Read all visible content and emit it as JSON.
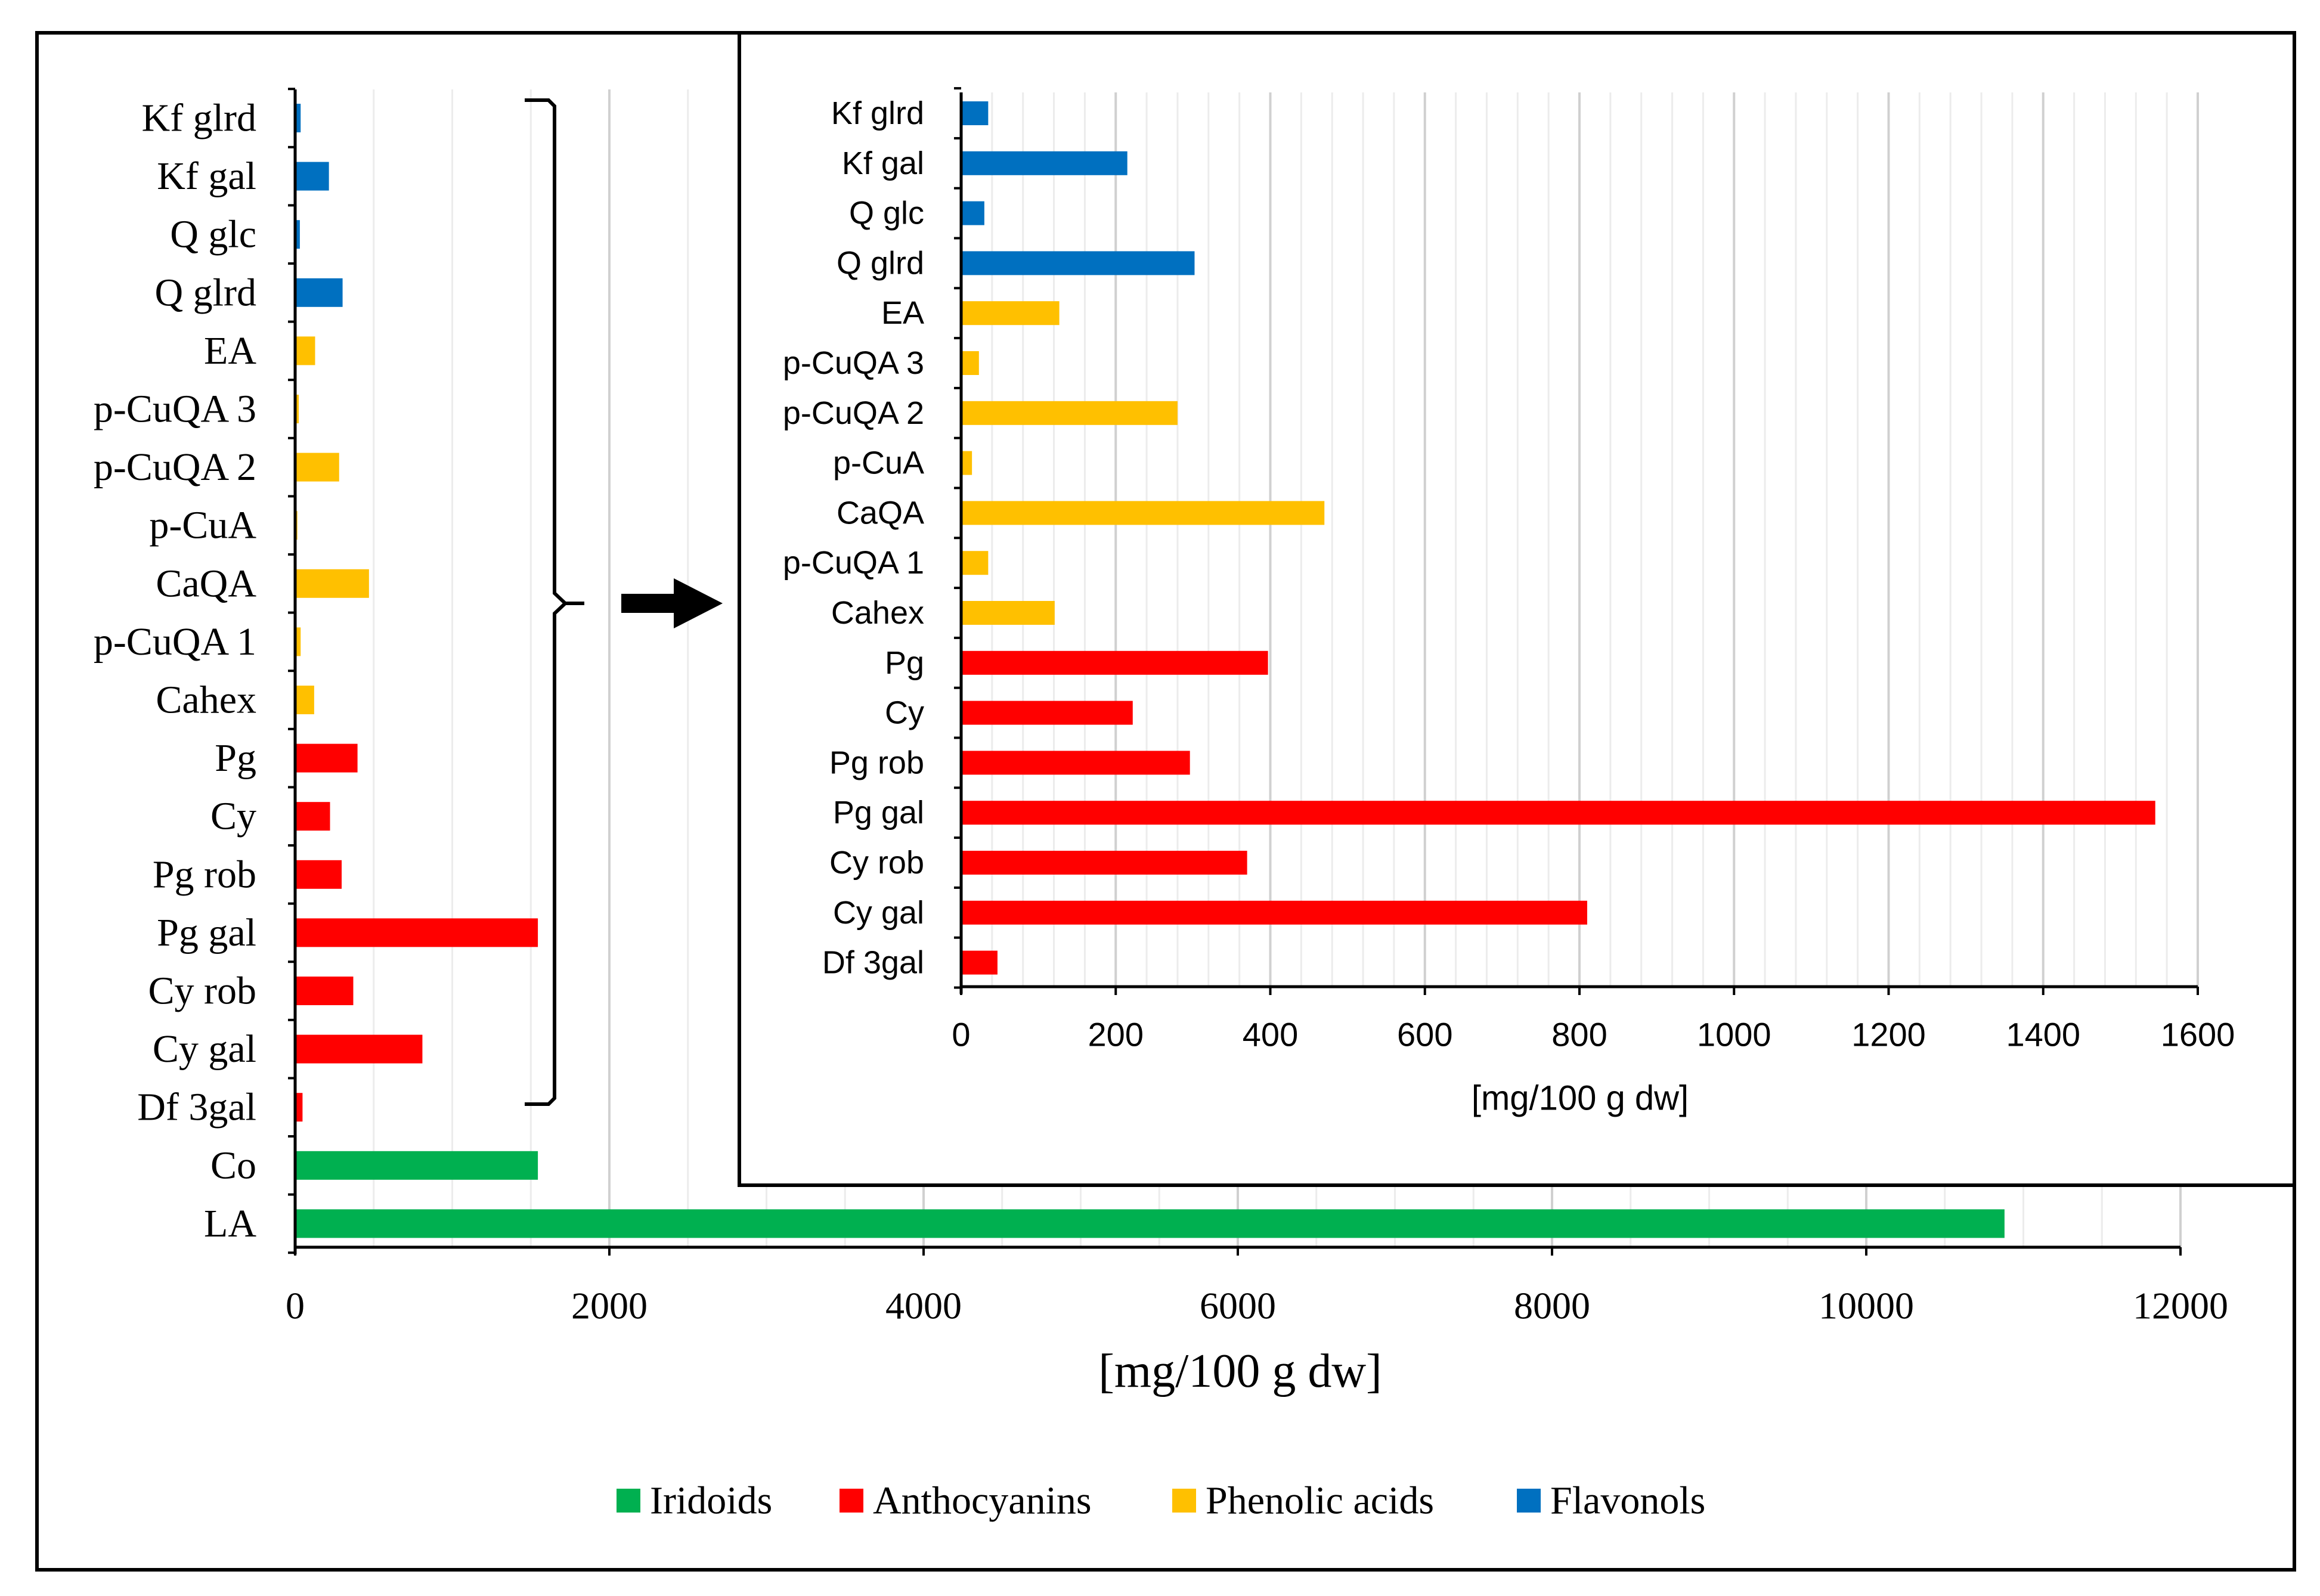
{
  "chart_data": [
    {
      "type": "bar",
      "orientation": "horizontal",
      "title": "",
      "xlabel": "[mg/100 g dw]",
      "ylabel": "",
      "xlim": [
        0,
        12000
      ],
      "xticks": [
        0,
        2000,
        4000,
        6000,
        8000,
        10000,
        12000
      ],
      "grid": true,
      "categories": [
        "Kf glrd",
        "Kf gal",
        "Q glc",
        "Q glrd",
        "EA",
        "p-CuQA 3",
        "p-CuQA 2",
        "p-CuA",
        "CaQA",
        "p-CuQA 1",
        "Cahex",
        "Pg",
        "Cy",
        "Pg rob",
        "Pg gal",
        "Cy rob",
        "Cy gal",
        "Df 3gal",
        "Co",
        "LA"
      ],
      "values": [
        35,
        215,
        30,
        302,
        127,
        23,
        280,
        14,
        470,
        35,
        121,
        397,
        222,
        296,
        1545,
        370,
        810,
        47,
        1545,
        10880
      ],
      "groups": [
        "Flavonols",
        "Flavonols",
        "Flavonols",
        "Flavonols",
        "Phenolic acids",
        "Phenolic acids",
        "Phenolic acids",
        "Phenolic acids",
        "Phenolic acids",
        "Phenolic acids",
        "Phenolic acids",
        "Anthocyanins",
        "Anthocyanins",
        "Anthocyanins",
        "Anthocyanins",
        "Anthocyanins",
        "Anthocyanins",
        "Anthocyanins",
        "Iridoids",
        "Iridoids"
      ]
    },
    {
      "type": "bar",
      "orientation": "horizontal",
      "title": "",
      "xlabel": "[mg/100 g dw]",
      "ylabel": "",
      "xlim": [
        0,
        1600
      ],
      "xticks": [
        0,
        200,
        400,
        600,
        800,
        1000,
        1200,
        1400,
        1600
      ],
      "grid": true,
      "categories": [
        "Kf glrd",
        "Kf gal",
        "Q glc",
        "Q glrd",
        "EA",
        "p-CuQA 3",
        "p-CuQA 2",
        "p-CuA",
        "CaQA",
        "p-CuQA 1",
        "Cahex",
        "Pg",
        "Cy",
        "Pg rob",
        "Pg gal",
        "Cy rob",
        "Cy gal",
        "Df 3gal"
      ],
      "values": [
        35,
        215,
        30,
        302,
        127,
        23,
        280,
        14,
        470,
        35,
        121,
        397,
        222,
        296,
        1545,
        370,
        810,
        47
      ],
      "groups": [
        "Flavonols",
        "Flavonols",
        "Flavonols",
        "Flavonols",
        "Phenolic acids",
        "Phenolic acids",
        "Phenolic acids",
        "Phenolic acids",
        "Phenolic acids",
        "Phenolic acids",
        "Phenolic acids",
        "Anthocyanins",
        "Anthocyanins",
        "Anthocyanins",
        "Anthocyanins",
        "Anthocyanins",
        "Anthocyanins",
        "Anthocyanins"
      ]
    }
  ],
  "legend": {
    "placement": "bottom",
    "items": [
      {
        "name": "Iridoids",
        "color": "#00B050"
      },
      {
        "name": "Anthocyanins",
        "color": "#FF0000"
      },
      {
        "name": "Phenolic acids",
        "color": "#FFC000"
      },
      {
        "name": "Flavonols",
        "color": "#0070C0"
      }
    ]
  }
}
